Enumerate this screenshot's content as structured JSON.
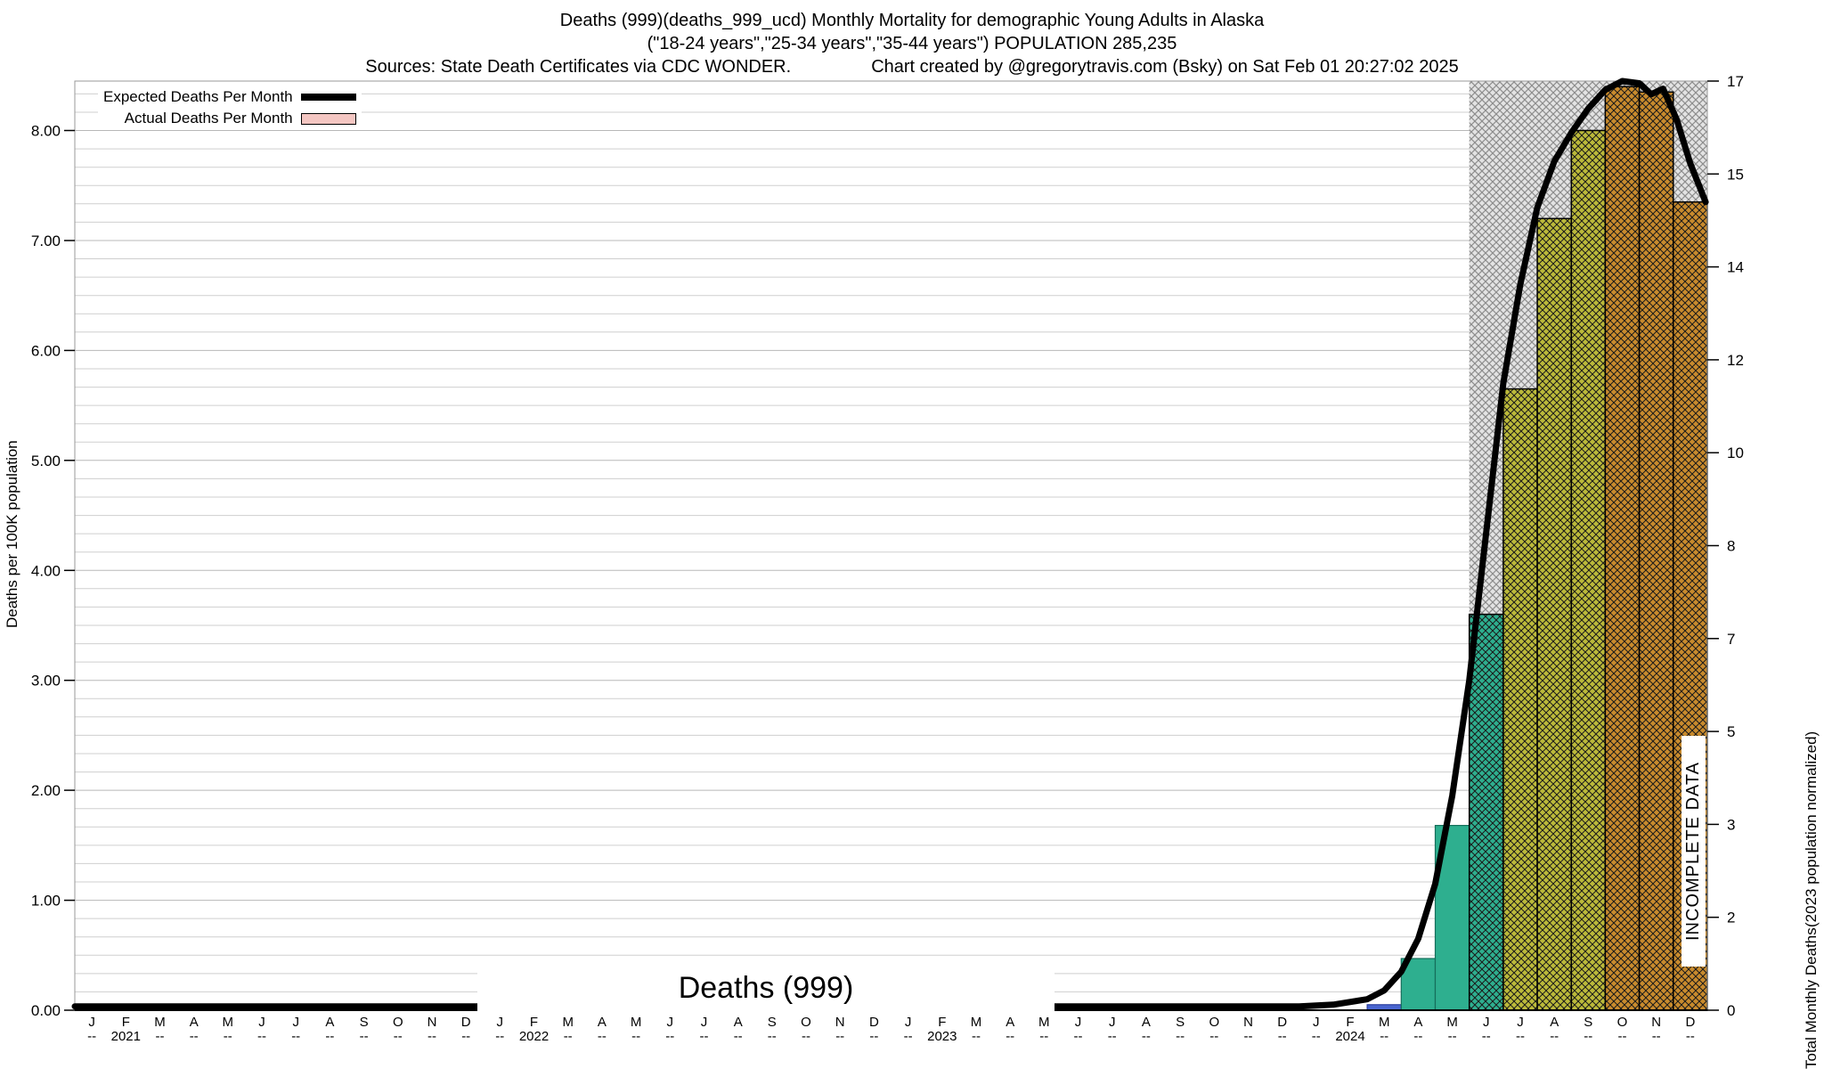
{
  "titles": {
    "line1": "Deaths (999)(deaths_999_ucd) Monthly Mortality for demographic Young Adults in Alaska",
    "line2": "(\"18-24 years\",\"25-34 years\",\"35-44 years\") POPULATION 285,235",
    "sources": "Sources: State Death Certificates via CDC WONDER.",
    "credit": "Chart created by @gregorytravis.com (Bsky) on Sat Feb 01 20:27:02 2025"
  },
  "legend": {
    "expected_label": "Expected Deaths Per Month",
    "actual_label": "Actual Deaths Per Month"
  },
  "axes": {
    "left_label": "Deaths per 100K population",
    "right_label_line1": "Total Monthly Deaths",
    "right_label_line2": "(2023 population normalized)",
    "left_ticks": [
      "0.00",
      "1.00",
      "2.00",
      "3.00",
      "4.00",
      "5.00",
      "6.00",
      "7.00",
      "8.00"
    ],
    "right_ticks": [
      "0",
      "2",
      "3",
      "5",
      "7",
      "8",
      "10",
      "12",
      "14",
      "15",
      "17"
    ],
    "month_letters": [
      "J",
      "F",
      "M",
      "A",
      "M",
      "J",
      "J",
      "A",
      "S",
      "O",
      "N",
      "D"
    ],
    "month_tick": "--",
    "years": [
      "2021",
      "2022",
      "2023",
      "2024"
    ]
  },
  "center_label": "Deaths (999)",
  "incomplete_label": "INCOMPLETE DATA",
  "colors": {
    "expected_line": "#000000",
    "actual_legend_swatch": "#f4c6c2",
    "bar_blue": "#4a66d0",
    "bar_blue_border": "#2b3f9e",
    "bar_teal": "#2eaf8f",
    "bar_teal_border": "#156e5a",
    "bar_olive": "#bcba3a",
    "bar_orange": "#c98b2d",
    "hatch_lines": "#1a1a1a",
    "incomplete_region_bg": "#e3e3e3",
    "incomplete_region_lines": "#8d8d8d",
    "gridline_minor": "#cfcfcf",
    "gridline_major": "#b8b8b8",
    "plot_border": "#999999"
  },
  "chart_data": {
    "type": "mixed-bar-line",
    "title": "Deaths (999)(deaths_999_ucd) Monthly Mortality for demographic Young Adults in Alaska",
    "left_axis_label": "Deaths per 100K population",
    "right_axis_label": "Total Monthly Deaths (2023 population normalized)",
    "left_axis_range": [
      0,
      8.45
    ],
    "right_axis_range": [
      0,
      17
    ],
    "x_range_months": [
      "Jan 2021",
      "Dec 2024"
    ],
    "grid": true,
    "legend_position": "top-left",
    "expected_line_series": {
      "name": "Expected Deaths Per Month",
      "units": "deaths per 100K population (left axis), month index from Jan 2021",
      "points": [
        [
          0,
          0.035
        ],
        [
          36,
          0.035
        ],
        [
          37,
          0.05
        ],
        [
          38,
          0.1
        ],
        [
          38.5,
          0.18
        ],
        [
          39,
          0.35
        ],
        [
          39.5,
          0.65
        ],
        [
          40,
          1.15
        ],
        [
          40.5,
          1.95
        ],
        [
          41,
          3.0
        ],
        [
          41.5,
          4.35
        ],
        [
          42,
          5.7
        ],
        [
          42.5,
          6.6
        ],
        [
          43,
          7.3
        ],
        [
          43.5,
          7.72
        ],
        [
          44,
          7.98
        ],
        [
          44.5,
          8.2
        ],
        [
          45,
          8.37
        ],
        [
          45.5,
          8.45
        ],
        [
          46,
          8.43
        ],
        [
          46.35,
          8.33
        ],
        [
          46.7,
          8.38
        ],
        [
          47.1,
          8.1
        ],
        [
          47.5,
          7.7
        ],
        [
          47.95,
          7.35
        ]
      ]
    },
    "bars": [
      {
        "label": "Mar 2024",
        "m_index": 38,
        "value": 0.05,
        "style": "blue"
      },
      {
        "label": "Apr 2024",
        "m_index": 39,
        "value": 0.47,
        "style": "teal"
      },
      {
        "label": "May 2024",
        "m_index": 40,
        "value": 1.68,
        "style": "teal"
      },
      {
        "label": "Jun 2024",
        "m_index": 41,
        "value": 3.6,
        "style": "teal-hatch"
      },
      {
        "label": "Jul 2024",
        "m_index": 42,
        "value": 5.65,
        "style": "olive-hatch"
      },
      {
        "label": "Aug 2024",
        "m_index": 43,
        "value": 7.2,
        "style": "olive-hatch"
      },
      {
        "label": "Sep 2024",
        "m_index": 44,
        "value": 8.0,
        "style": "olive-hatch"
      },
      {
        "label": "Oct 2024",
        "m_index": 45,
        "value": 8.4,
        "style": "orange-hatch"
      },
      {
        "label": "Nov 2024",
        "m_index": 46,
        "value": 8.35,
        "style": "orange-hatch"
      },
      {
        "label": "Dec 2024",
        "m_index": 47,
        "value": 7.35,
        "style": "orange-hatch"
      }
    ],
    "incomplete_from_month_index": 41
  }
}
